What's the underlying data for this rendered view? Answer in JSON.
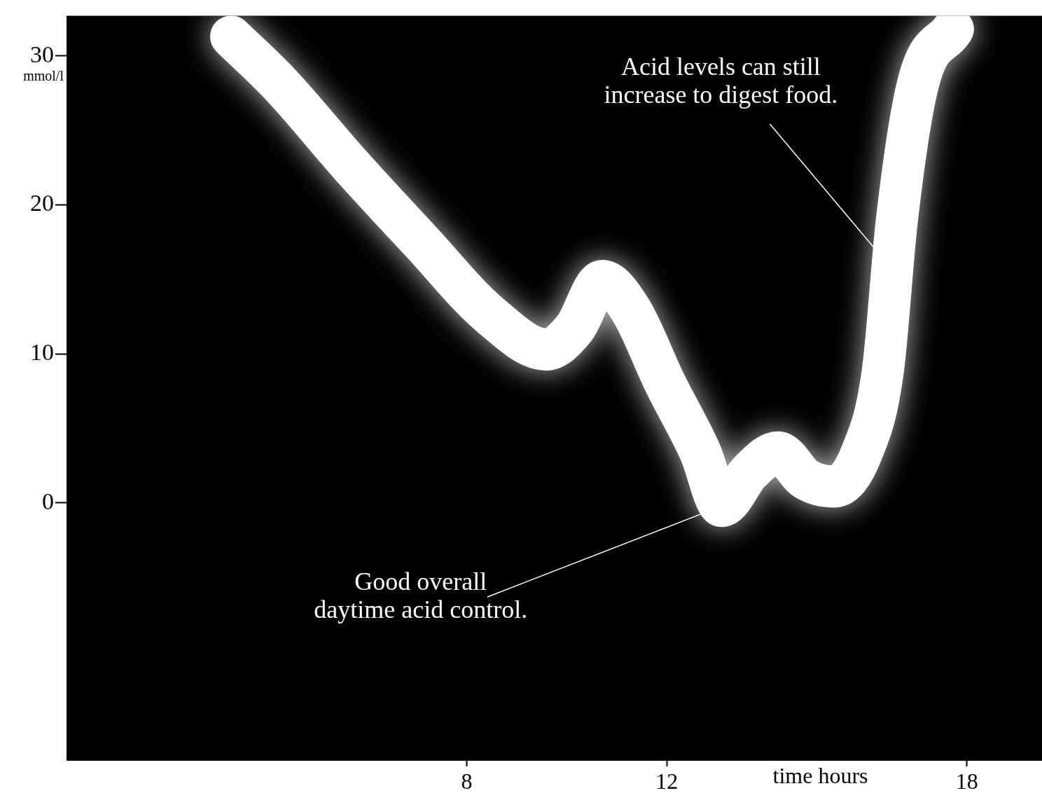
{
  "chart_data": {
    "type": "line",
    "xlabel": "time hours",
    "ylabel": "mmol/l",
    "x": [
      3.29,
      4.27,
      5.67,
      7.07,
      8.47,
      9.59,
      10.15,
      10.71,
      11.27,
      11.97,
      12.67,
      13.1,
      13.66,
      14.22,
      14.78,
      15.34,
      15.9,
      16.32,
      16.6,
      17.02,
      17.72
    ],
    "series": [
      {
        "color": "#ffffff",
        "values": [
          31.3,
          28.1,
          22.7,
          17.6,
          12.6,
          10.3,
          11.7,
          14.9,
          13.0,
          8.0,
          3.4,
          -0.2,
          2.1,
          3.4,
          1.6,
          1.1,
          3.4,
          8.9,
          19.0,
          28.1,
          31.8
        ]
      }
    ],
    "xlim": [
      0,
      19.5
    ],
    "xticks": [
      8,
      12,
      18
    ],
    "ylim": [
      -17.3,
      32.7
    ],
    "yticks": [
      0,
      10,
      20,
      30
    ],
    "annotations": [
      {
        "text": "Acid levels can still\nincrease to digest food.",
        "x": 16.3,
        "y": 16.5
      },
      {
        "text": "Good overall\ndaytime acid control.",
        "x": 13.1,
        "y": -0.2
      }
    ],
    "legend": false,
    "marker": "none",
    "line_style": "solid"
  }
}
